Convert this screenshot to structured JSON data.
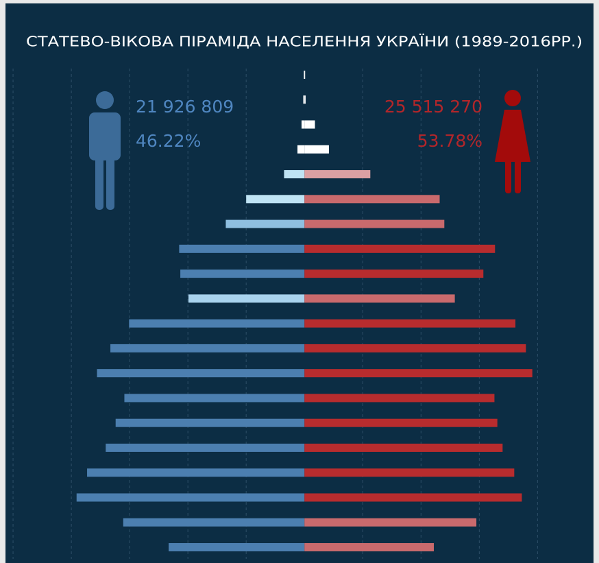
{
  "chart_data": {
    "type": "pyramid",
    "title": "СТАТЕВО-ВІКОВА ПІРАМІДА НАСЕЛЕННЯ УКРАЇНИ (1989-2016РР.)",
    "male": {
      "total": "21 926 809",
      "share": "46.22%"
    },
    "female": {
      "total": "25 515 270",
      "share": "53.78%"
    },
    "xlim": [
      -5.13,
      4.96
    ],
    "xticks": [
      -5,
      -4,
      -3,
      -2,
      -1,
      1,
      2,
      3,
      4
    ],
    "grid": true,
    "series": [
      {
        "values": [
          0.01,
          0.02,
          0.05,
          0.12,
          0.35,
          1.0,
          1.35,
          2.15,
          2.13,
          1.99,
          3.01,
          3.33,
          3.56,
          3.09,
          3.24,
          3.41,
          3.73,
          3.91,
          3.11,
          2.33
        ],
        "colors": [
          "#ffffff",
          "#ffffff",
          "#ffffff",
          "#ffffff",
          "#bfe3f4",
          "#bfe3f4",
          "#8fbfe0",
          "#4c7fb0",
          "#4c7fb0",
          "#a9d3ee",
          "#4c7fb0",
          "#4c7fb0",
          "#4c7fb0",
          "#4c7fb0",
          "#4c7fb0",
          "#4c7fb0",
          "#4c7fb0",
          "#4c7fb0",
          "#4c7fb0",
          "#4c7fb0"
        ]
      },
      {
        "values": [
          0.01,
          0.02,
          0.18,
          0.42,
          1.13,
          2.32,
          2.4,
          3.27,
          3.07,
          2.58,
          3.62,
          3.8,
          3.91,
          3.26,
          3.31,
          3.4,
          3.6,
          3.73,
          2.95,
          2.22
        ],
        "colors": [
          "#ffffff",
          "#ffffff",
          "#ffffff",
          "#ffffff",
          "#dba0a3",
          "#c96a6d",
          "#c96a6d",
          "#b82c2e",
          "#b82c2e",
          "#c96a6d",
          "#b82c2e",
          "#b82c2e",
          "#b82c2e",
          "#b82c2e",
          "#b82c2e",
          "#b82c2e",
          "#b82c2e",
          "#b82c2e",
          "#c96a6d",
          "#c96a6d"
        ]
      }
    ]
  }
}
